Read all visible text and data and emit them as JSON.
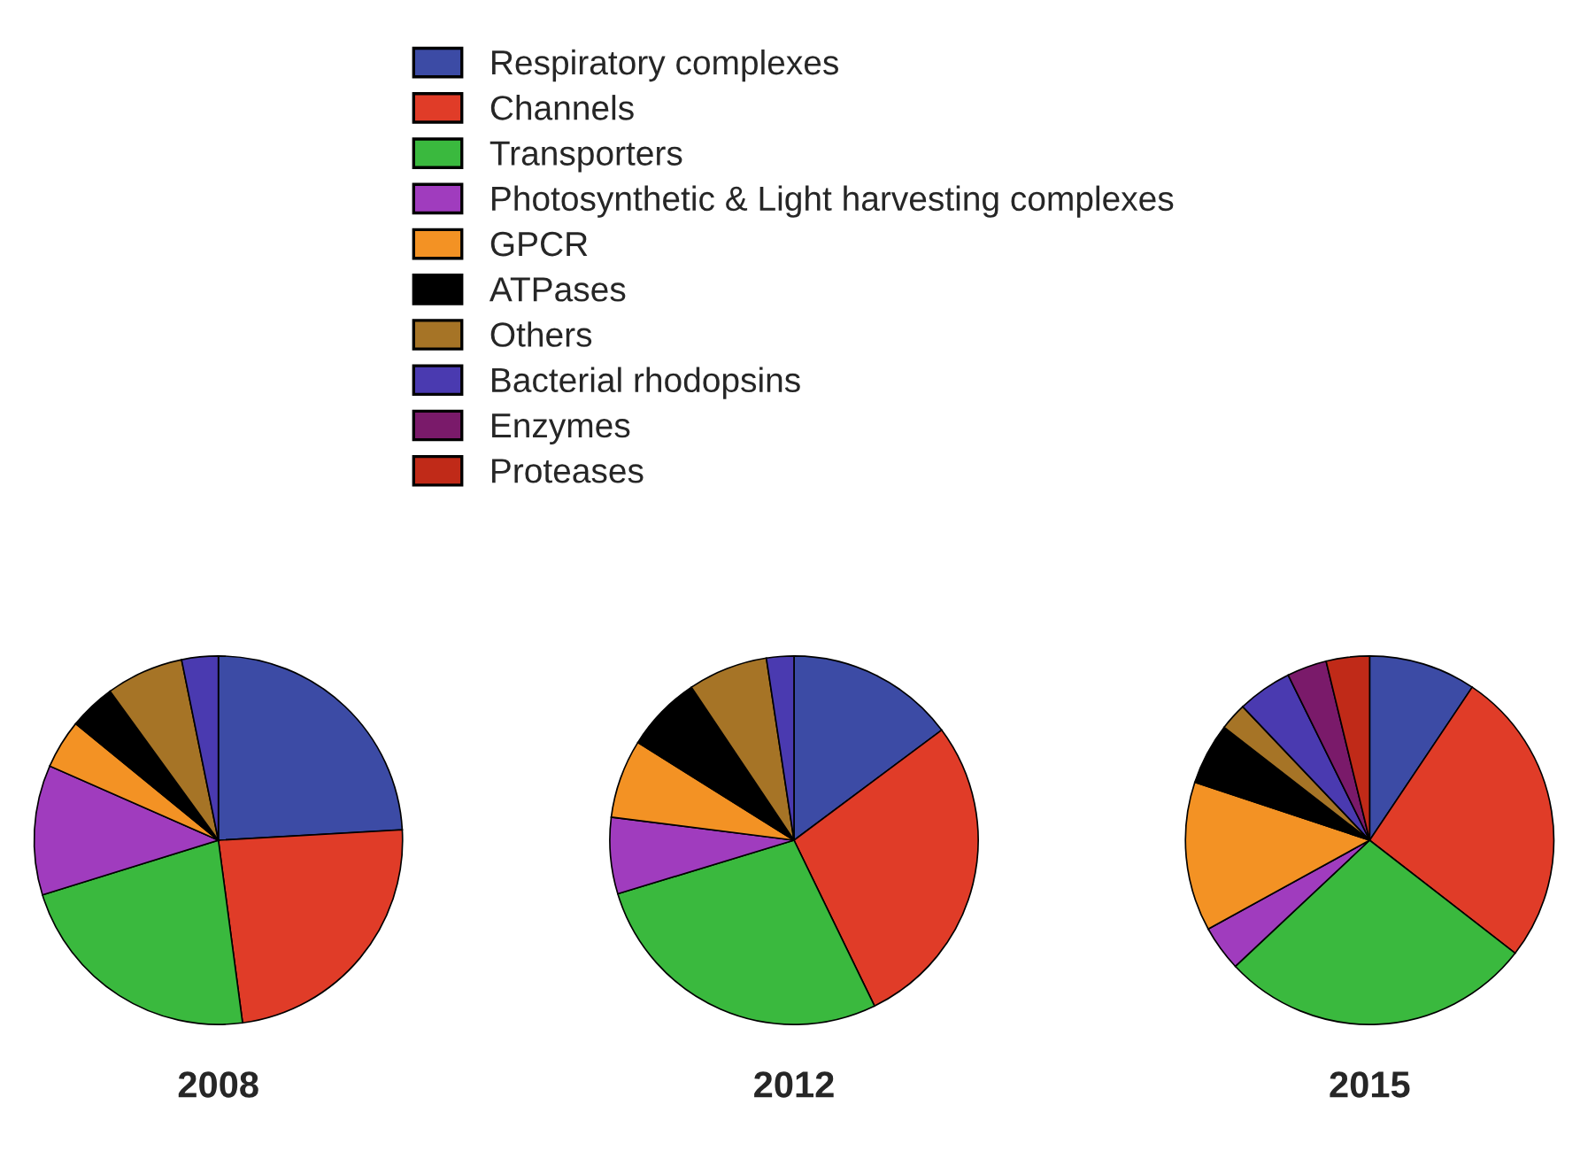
{
  "chart_data": [
    {
      "type": "pie",
      "title": "2008",
      "categories": [
        null,
        null,
        null,
        null,
        null,
        null,
        null,
        null,
        null,
        null
      ],
      "values": [
        24.1,
        23.8,
        22.3,
        11.4,
        4.3,
        4.1,
        6.8,
        3.2,
        0,
        0
      ],
      "colors": [
        "#3c4ba5",
        "#e03c28",
        "#3ab93e",
        "#a03cbe",
        "#f39224",
        "#000000",
        "#a67426",
        "#4a3ab0",
        "#7a1a6a",
        "#c02a18"
      ]
    },
    {
      "type": "pie",
      "title": "2012",
      "categories": [
        null,
        null,
        null,
        null,
        null,
        null,
        null,
        null,
        null,
        null
      ],
      "values": [
        14.8,
        28.0,
        27.5,
        6.7,
        6.9,
        6.7,
        7.0,
        2.4,
        0,
        0
      ],
      "colors": [
        "#3c4ba5",
        "#e03c28",
        "#3ab93e",
        "#a03cbe",
        "#f39224",
        "#000000",
        "#a67426",
        "#4a3ab0",
        "#7a1a6a",
        "#c02a18"
      ]
    },
    {
      "type": "pie",
      "title": "2015",
      "legend": "top",
      "categories": [
        "Respiratory complexes",
        "Channels",
        "Transporters",
        "Photosynthetic & Light harvesting complexes",
        "GPCR",
        "ATPases",
        "Others",
        "Bacterial rhodopsins",
        "Enzymes",
        "Proteases"
      ],
      "values": [
        9.4,
        26.1,
        27.5,
        4.0,
        13.1,
        5.4,
        2.4,
        4.8,
        3.5,
        3.8
      ],
      "colors": [
        "#3c4ba5",
        "#e03c28",
        "#3ab93e",
        "#a03cbe",
        "#f39224",
        "#000000",
        "#a67426",
        "#4a3ab0",
        "#7a1a6a",
        "#c02a18"
      ]
    }
  ]
}
